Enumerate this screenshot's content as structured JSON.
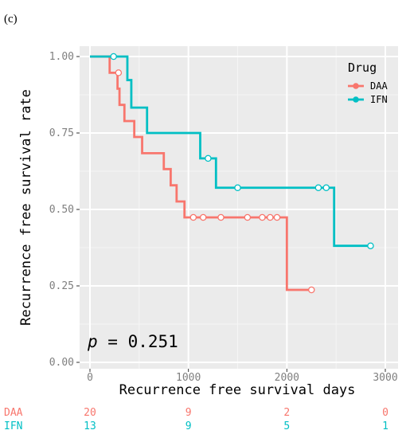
{
  "panel_label": "(c)",
  "chart_data": {
    "type": "line",
    "subtype": "kaplan-meier survival curve",
    "xlabel": "Recurrence free survival days",
    "ylabel": "Recurrence free survival rate",
    "xlim": [
      -50,
      3050
    ],
    "ylim": [
      0,
      1.0
    ],
    "x_ticks": [
      0,
      1000,
      2000,
      3000
    ],
    "x_tick_labels": [
      "0",
      "1000",
      "2000",
      "3000"
    ],
    "y_ticks": [
      0,
      0.25,
      0.5,
      0.75,
      1.0
    ],
    "y_tick_labels": [
      "0.00",
      "0.25",
      "0.50",
      "0.75",
      "1.00"
    ],
    "grid": true,
    "legend": {
      "title": "Drug",
      "position": "top-right"
    },
    "series": [
      {
        "name": "DAA",
        "color": "#F8766D",
        "steps": [
          [
            0,
            1.0
          ],
          [
            200,
            0.947
          ],
          [
            280,
            0.895
          ],
          [
            300,
            0.842
          ],
          [
            350,
            0.789
          ],
          [
            450,
            0.737
          ],
          [
            530,
            0.684
          ],
          [
            750,
            0.632
          ],
          [
            820,
            0.579
          ],
          [
            880,
            0.526
          ],
          [
            960,
            0.474
          ],
          [
            2000,
            0.237
          ],
          [
            2250,
            0.237
          ]
        ],
        "censored": [
          [
            290,
            0.947
          ],
          [
            1050,
            0.474
          ],
          [
            1150,
            0.474
          ],
          [
            1330,
            0.474
          ],
          [
            1600,
            0.474
          ],
          [
            1750,
            0.474
          ],
          [
            1830,
            0.474
          ],
          [
            1900,
            0.474
          ],
          [
            2250,
            0.237
          ]
        ]
      },
      {
        "name": "IFN",
        "color": "#00BFC4",
        "steps": [
          [
            0,
            1.0
          ],
          [
            380,
            0.923
          ],
          [
            420,
            0.833
          ],
          [
            580,
            0.75
          ],
          [
            1120,
            0.667
          ],
          [
            1280,
            0.571
          ],
          [
            2480,
            0.381
          ],
          [
            2850,
            0.381
          ]
        ],
        "censored": [
          [
            240,
            1.0
          ],
          [
            1200,
            0.667
          ],
          [
            1500,
            0.571
          ],
          [
            2320,
            0.571
          ],
          [
            2400,
            0.571
          ],
          [
            2850,
            0.381
          ]
        ]
      }
    ],
    "annotation": {
      "prefix": "p",
      "text": " = 0.251"
    }
  },
  "risk_table": {
    "times": [
      0,
      1000,
      2000,
      3000
    ],
    "rows": [
      {
        "label": "DAA",
        "color": "#F8766D",
        "counts": [
          "20",
          "9",
          "2",
          "0"
        ]
      },
      {
        "label": "IFN",
        "color": "#00BFC4",
        "counts": [
          "13",
          "9",
          "5",
          "1"
        ]
      }
    ]
  }
}
